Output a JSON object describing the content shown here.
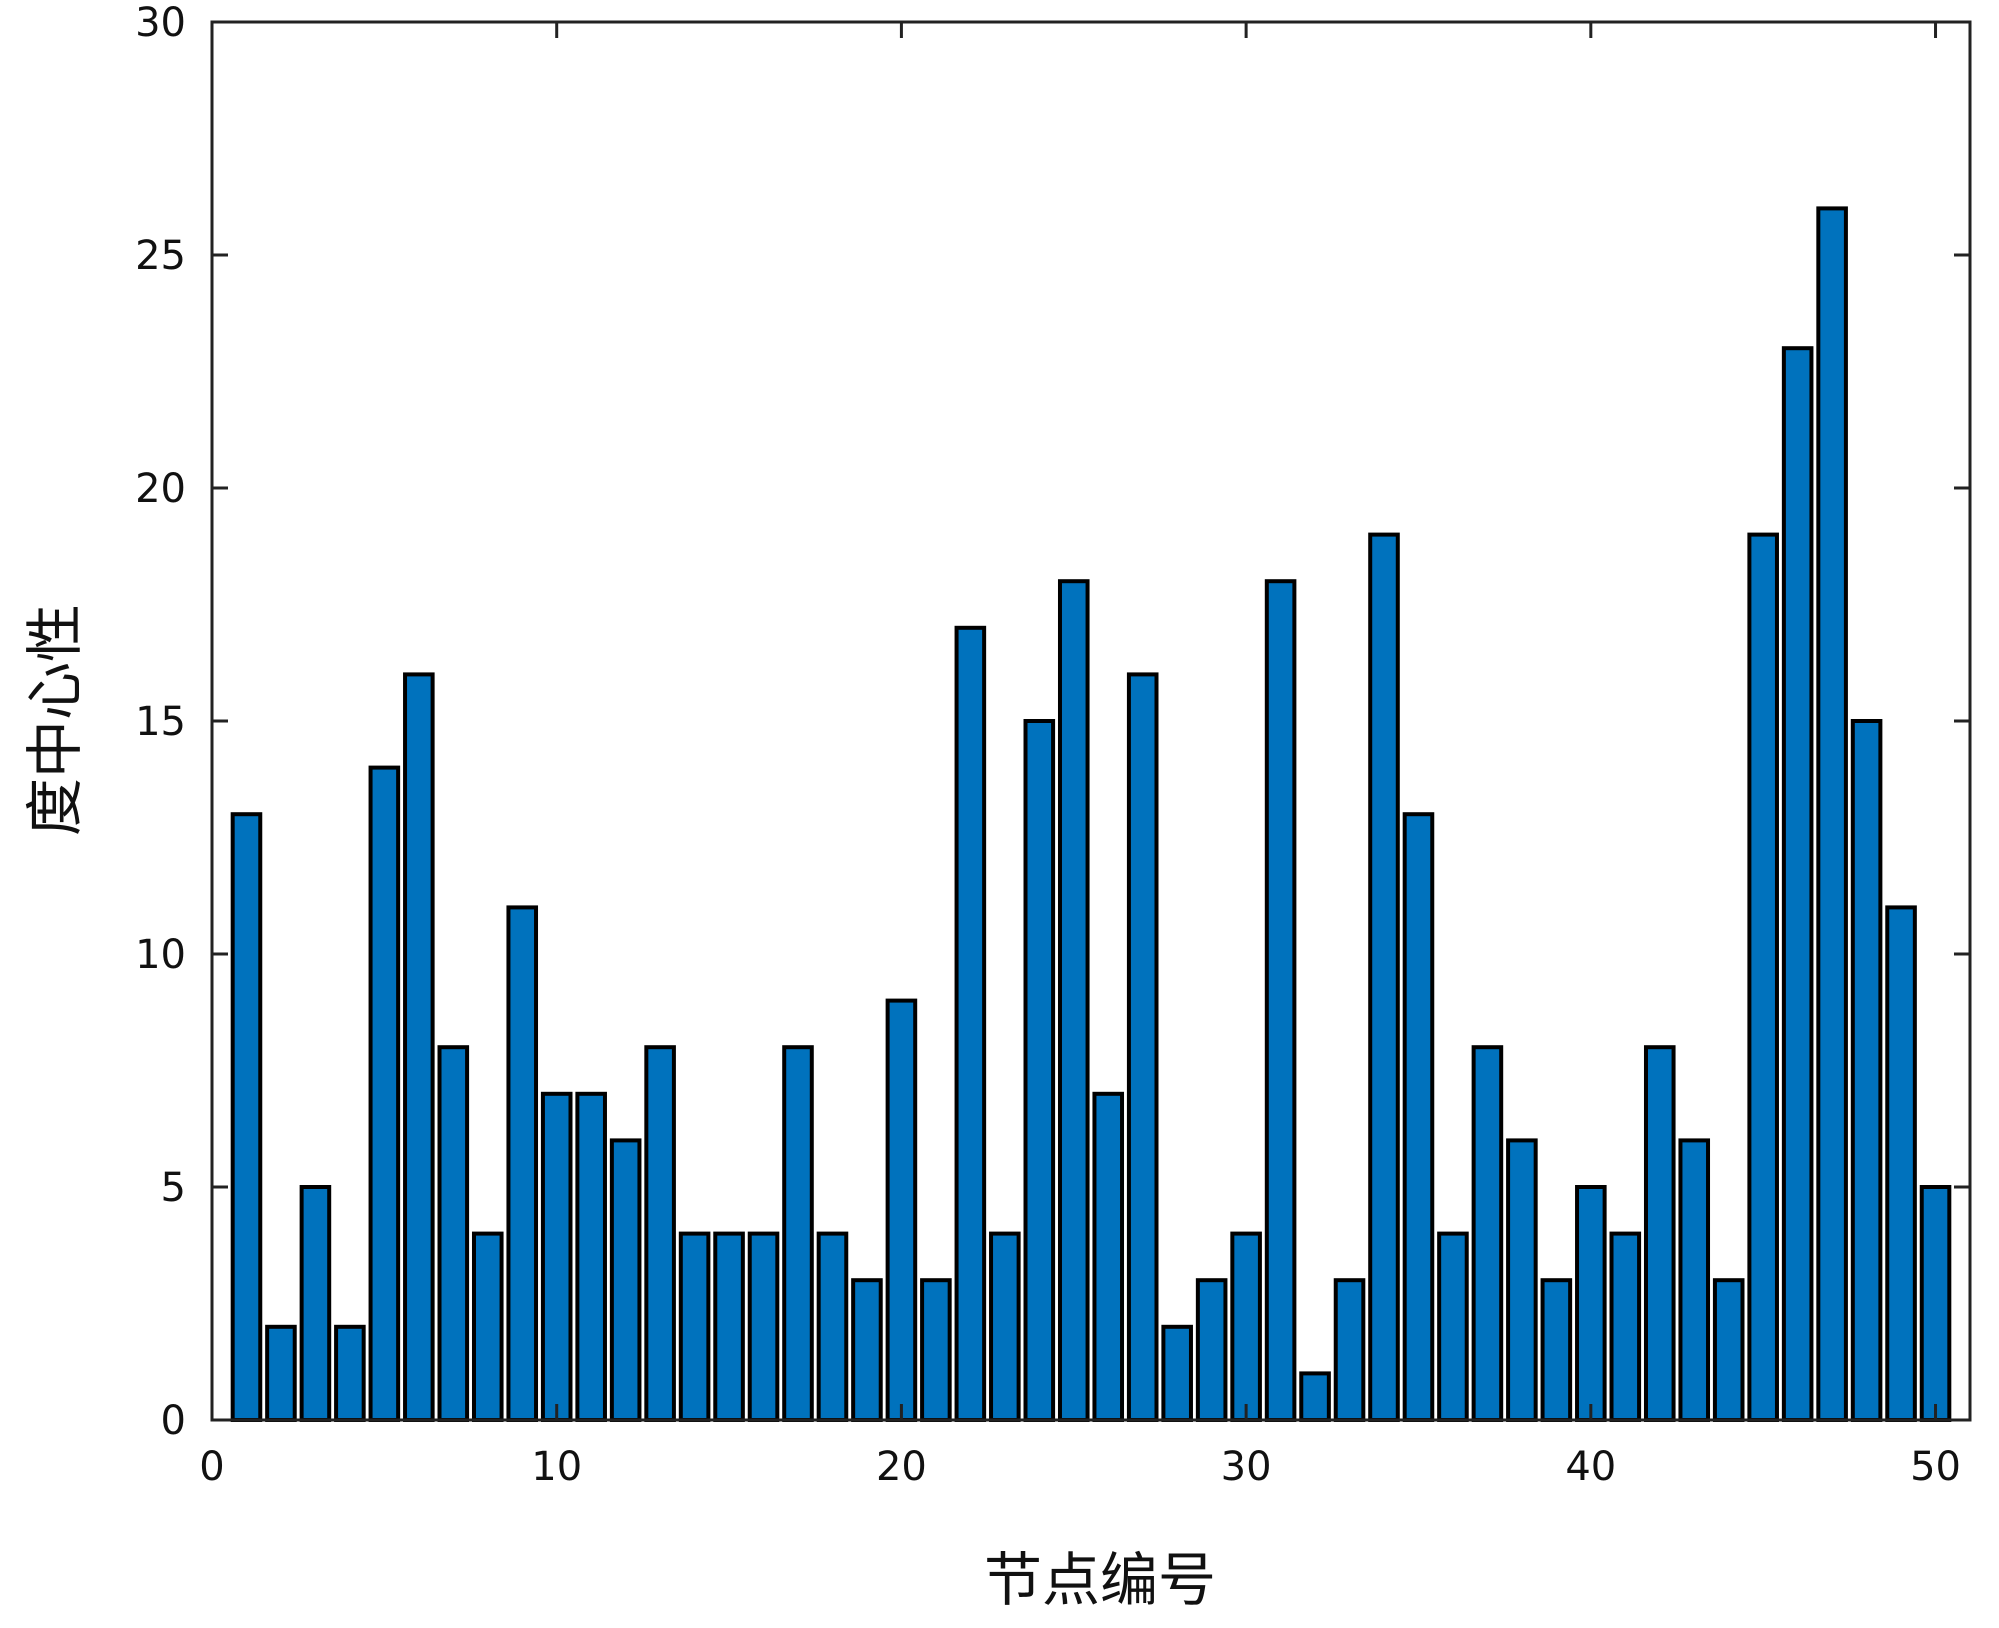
{
  "chart_data": {
    "type": "bar",
    "title": "",
    "xlabel": "节点编号",
    "ylabel": "度中心性",
    "x": [
      1,
      2,
      3,
      4,
      5,
      6,
      7,
      8,
      9,
      10,
      11,
      12,
      13,
      14,
      15,
      16,
      17,
      18,
      19,
      20,
      21,
      22,
      23,
      24,
      25,
      26,
      27,
      28,
      29,
      30,
      31,
      32,
      33,
      34,
      35,
      36,
      37,
      38,
      39,
      40,
      41,
      42,
      43,
      44,
      45,
      46,
      47,
      48,
      49,
      50
    ],
    "values": [
      13,
      2,
      5,
      2,
      14,
      16,
      8,
      4,
      11,
      7,
      7,
      6,
      8,
      4,
      4,
      4,
      8,
      4,
      3,
      9,
      3,
      17,
      4,
      15,
      18,
      7,
      16,
      2,
      3,
      4,
      18,
      1,
      3,
      19,
      13,
      4,
      8,
      6,
      3,
      5,
      4,
      8,
      6,
      3,
      19,
      23,
      26,
      15,
      11,
      5
    ],
    "xlim": [
      0,
      51
    ],
    "ylim": [
      0,
      30
    ],
    "xticks": [
      0,
      10,
      20,
      30,
      40,
      50
    ],
    "yticks": [
      0,
      5,
      10,
      15,
      20,
      25,
      30
    ],
    "bar_color": "#0072BD",
    "edge_color": "#000000",
    "grid": false,
    "legend": "none"
  }
}
